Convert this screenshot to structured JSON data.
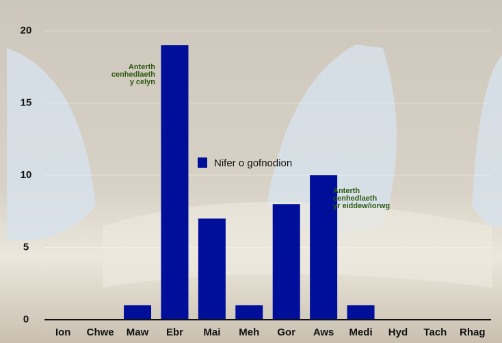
{
  "chart_data": {
    "type": "bar",
    "categories": [
      "Ion",
      "Chwe",
      "Maw",
      "Ebr",
      "Mai",
      "Meh",
      "Gor",
      "Aws",
      "Medi",
      "Hyd",
      "Tach",
      "Rhag"
    ],
    "series": [
      {
        "name": "Nifer o gofnodion",
        "color": "#000f9a",
        "values": [
          0,
          0,
          1,
          19,
          7,
          1,
          8,
          10,
          1,
          0,
          0,
          0
        ]
      }
    ],
    "ylim": [
      0,
      20
    ],
    "yticks": [
      0,
      5,
      10,
      15,
      20
    ],
    "grid": true,
    "annotations": [
      {
        "lines": [
          "Anterth",
          "cenhedlaeth",
          "y celyn"
        ]
      },
      {
        "lines": [
          "Anterth",
          "cenhedlaeth",
          "yr eiddew/iorwg"
        ]
      }
    ]
  }
}
